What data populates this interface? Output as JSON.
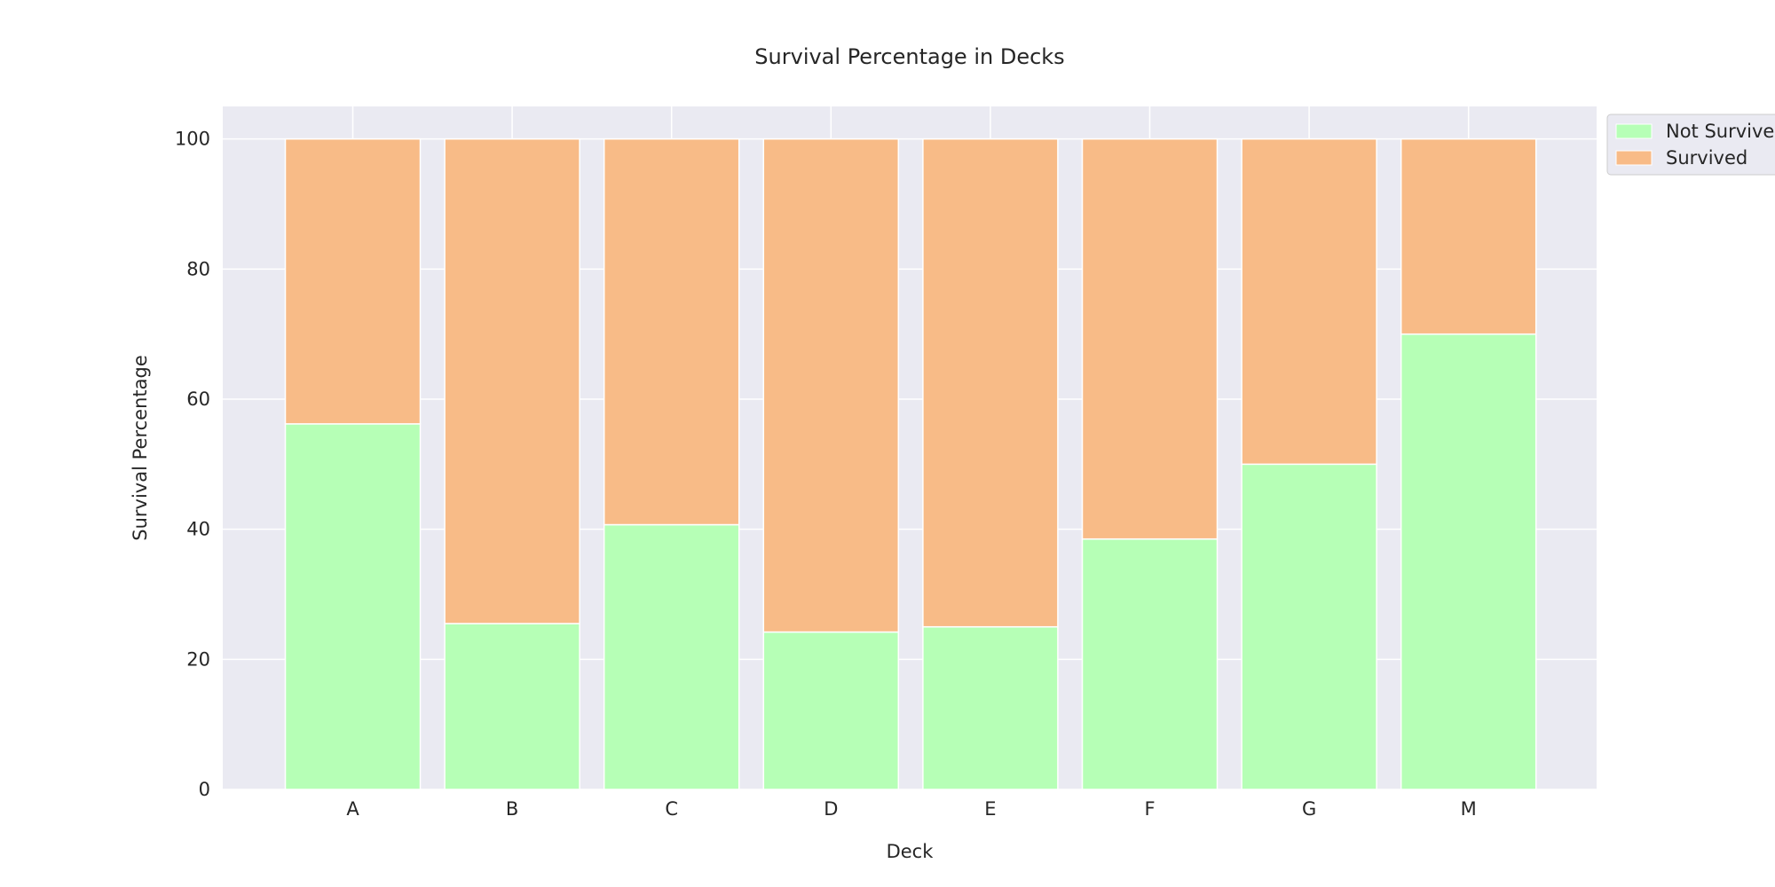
{
  "chart_data": {
    "type": "bar",
    "stacked": true,
    "title": "Survival Percentage in Decks",
    "xlabel": "Deck",
    "ylabel": "Survival Percentage",
    "categories": [
      "A",
      "B",
      "C",
      "D",
      "E",
      "F",
      "G",
      "M"
    ],
    "series": [
      {
        "name": "Not Survived",
        "color": "#b6ffb6",
        "values": [
          56.2,
          25.5,
          40.7,
          24.2,
          25.0,
          38.5,
          50.0,
          70.0
        ]
      },
      {
        "name": "Survived",
        "color": "#f8bb87",
        "values": [
          43.8,
          74.5,
          59.3,
          75.8,
          75.0,
          61.5,
          50.0,
          30.0
        ]
      }
    ],
    "ylim": [
      0,
      105
    ],
    "yticks": [
      0,
      20,
      40,
      60,
      80,
      100
    ],
    "grid": true,
    "background_color": "#eaeaf2",
    "legend_position": "upper-right-outside"
  }
}
